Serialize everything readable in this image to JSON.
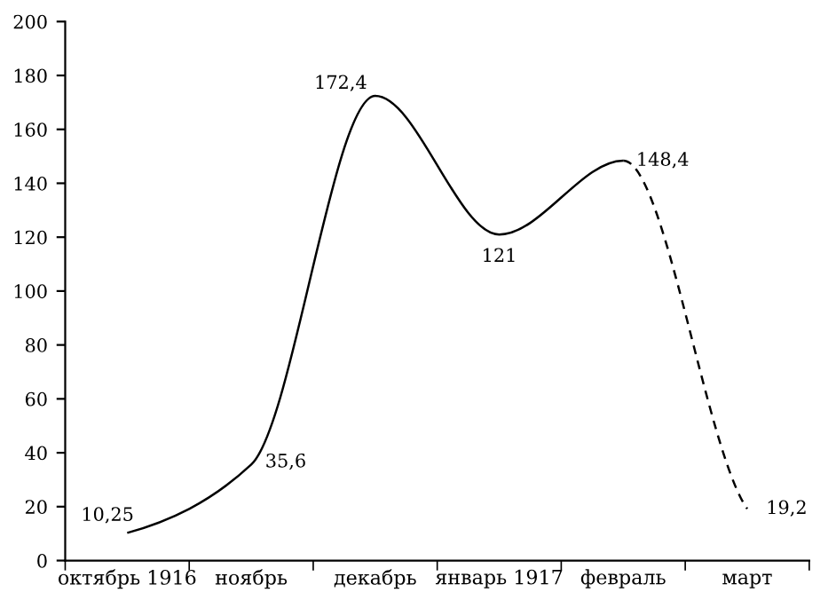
{
  "chart_data": {
    "type": "line",
    "categories": [
      "октябрь 1916",
      "ноябрь",
      "декабрь",
      "январь 1917",
      "февраль",
      "март"
    ],
    "series": [
      {
        "color": "#000000",
        "line_style": "solid",
        "values": [
          10.25,
          35.6,
          172.4,
          121,
          148.4,
          null
        ],
        "value_labels": [
          "10,25",
          "35,6",
          "172,4",
          "121",
          "148,4",
          null
        ]
      },
      {
        "color": "#000000",
        "line_style": "dashed",
        "values": [
          null,
          null,
          null,
          null,
          148.4,
          19.2
        ],
        "value_labels": [
          null,
          null,
          null,
          null,
          null,
          "19,2"
        ]
      }
    ],
    "ylim": [
      0,
      200
    ],
    "yticks": [
      0,
      20,
      40,
      60,
      80,
      100,
      120,
      140,
      160,
      180,
      200
    ],
    "grid": false,
    "legend": false,
    "marker": "none"
  }
}
